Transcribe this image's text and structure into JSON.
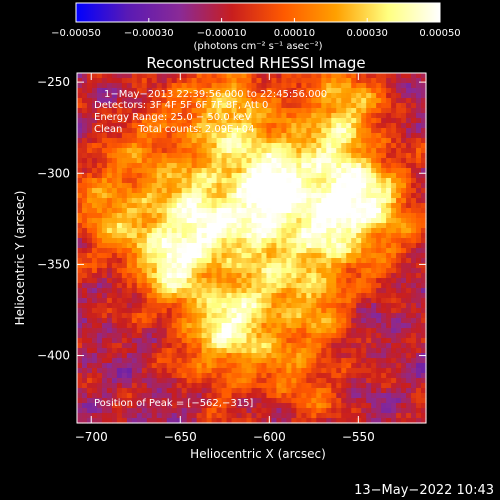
{
  "chart_data": {
    "type": "heatmap",
    "title": "Reconstructed RHESSI Image",
    "xlabel": "Heliocentric X (arcsec)",
    "ylabel": "Heliocentric Y (arcsec)",
    "xlim": [
      -708,
      -512
    ],
    "ylim": [
      -437,
      -245
    ],
    "x_ticks": [
      -700,
      -650,
      -600,
      -550
    ],
    "x_tick_labels": [
      "−700",
      "−650",
      "−600",
      "−550"
    ],
    "y_ticks": [
      -250,
      -300,
      -350,
      -400
    ],
    "y_tick_labels": [
      "−250",
      "−300",
      "−350",
      "−400"
    ],
    "colorbar": {
      "range": [
        -0.0005,
        0.0005
      ],
      "ticks": [
        -0.0005,
        -0.0003,
        -0.0001,
        0.0001,
        0.0003,
        0.0005
      ],
      "tick_labels": [
        "−0.00050",
        "−0.00030",
        "−0.00010",
        "0.00010",
        "0.00030",
        "0.00050"
      ],
      "unit_label": "(photons cm⁻² s⁻¹ asec⁻²)",
      "colors": [
        "#0000ff",
        "#5a1ab4",
        "#8a2a96",
        "#c81e1e",
        "#ff5a00",
        "#ffa000",
        "#ffff80",
        "#ffffff"
      ]
    },
    "annotations": {
      "time_range": "1−May−2013 22:39:56.000 to 22:45:56.000",
      "detectors": "Detectors: 3F 4F 5F 6F 7F 8F, Att 0",
      "energy_range": "Energy Range: 25.0 − 50.0 keV",
      "method": "Clean     Total counts: 2.09E+04",
      "peak_position": "Position of Peak = [−562,−315]"
    },
    "peak": [
      -562,
      -315
    ],
    "sources": [
      {
        "x": -655,
        "y": -345,
        "amplitude": 0.00052
      },
      {
        "x": -635,
        "y": -320,
        "amplitude": 0.00042
      },
      {
        "x": -625,
        "y": -265,
        "amplitude": 0.0004
      },
      {
        "x": -597,
        "y": -300,
        "amplitude": 0.00048
      },
      {
        "x": -603,
        "y": -328,
        "amplitude": 0.00038
      },
      {
        "x": -612,
        "y": -378,
        "amplitude": 0.00036
      },
      {
        "x": -630,
        "y": -390,
        "amplitude": 0.0003
      },
      {
        "x": -575,
        "y": -360,
        "amplitude": 0.00034
      },
      {
        "x": -562,
        "y": -315,
        "amplitude": 0.00055
      },
      {
        "x": -560,
        "y": -265,
        "amplitude": 0.0004
      },
      {
        "x": -537,
        "y": -320,
        "amplitude": 0.00035
      },
      {
        "x": -690,
        "y": -320,
        "amplitude": 0.00032
      },
      {
        "x": -665,
        "y": -285,
        "amplitude": 0.00022
      },
      {
        "x": -580,
        "y": -410,
        "amplitude": 0.00022
      }
    ]
  },
  "footer": {
    "timestamp": "13−May−2022 10:43"
  }
}
